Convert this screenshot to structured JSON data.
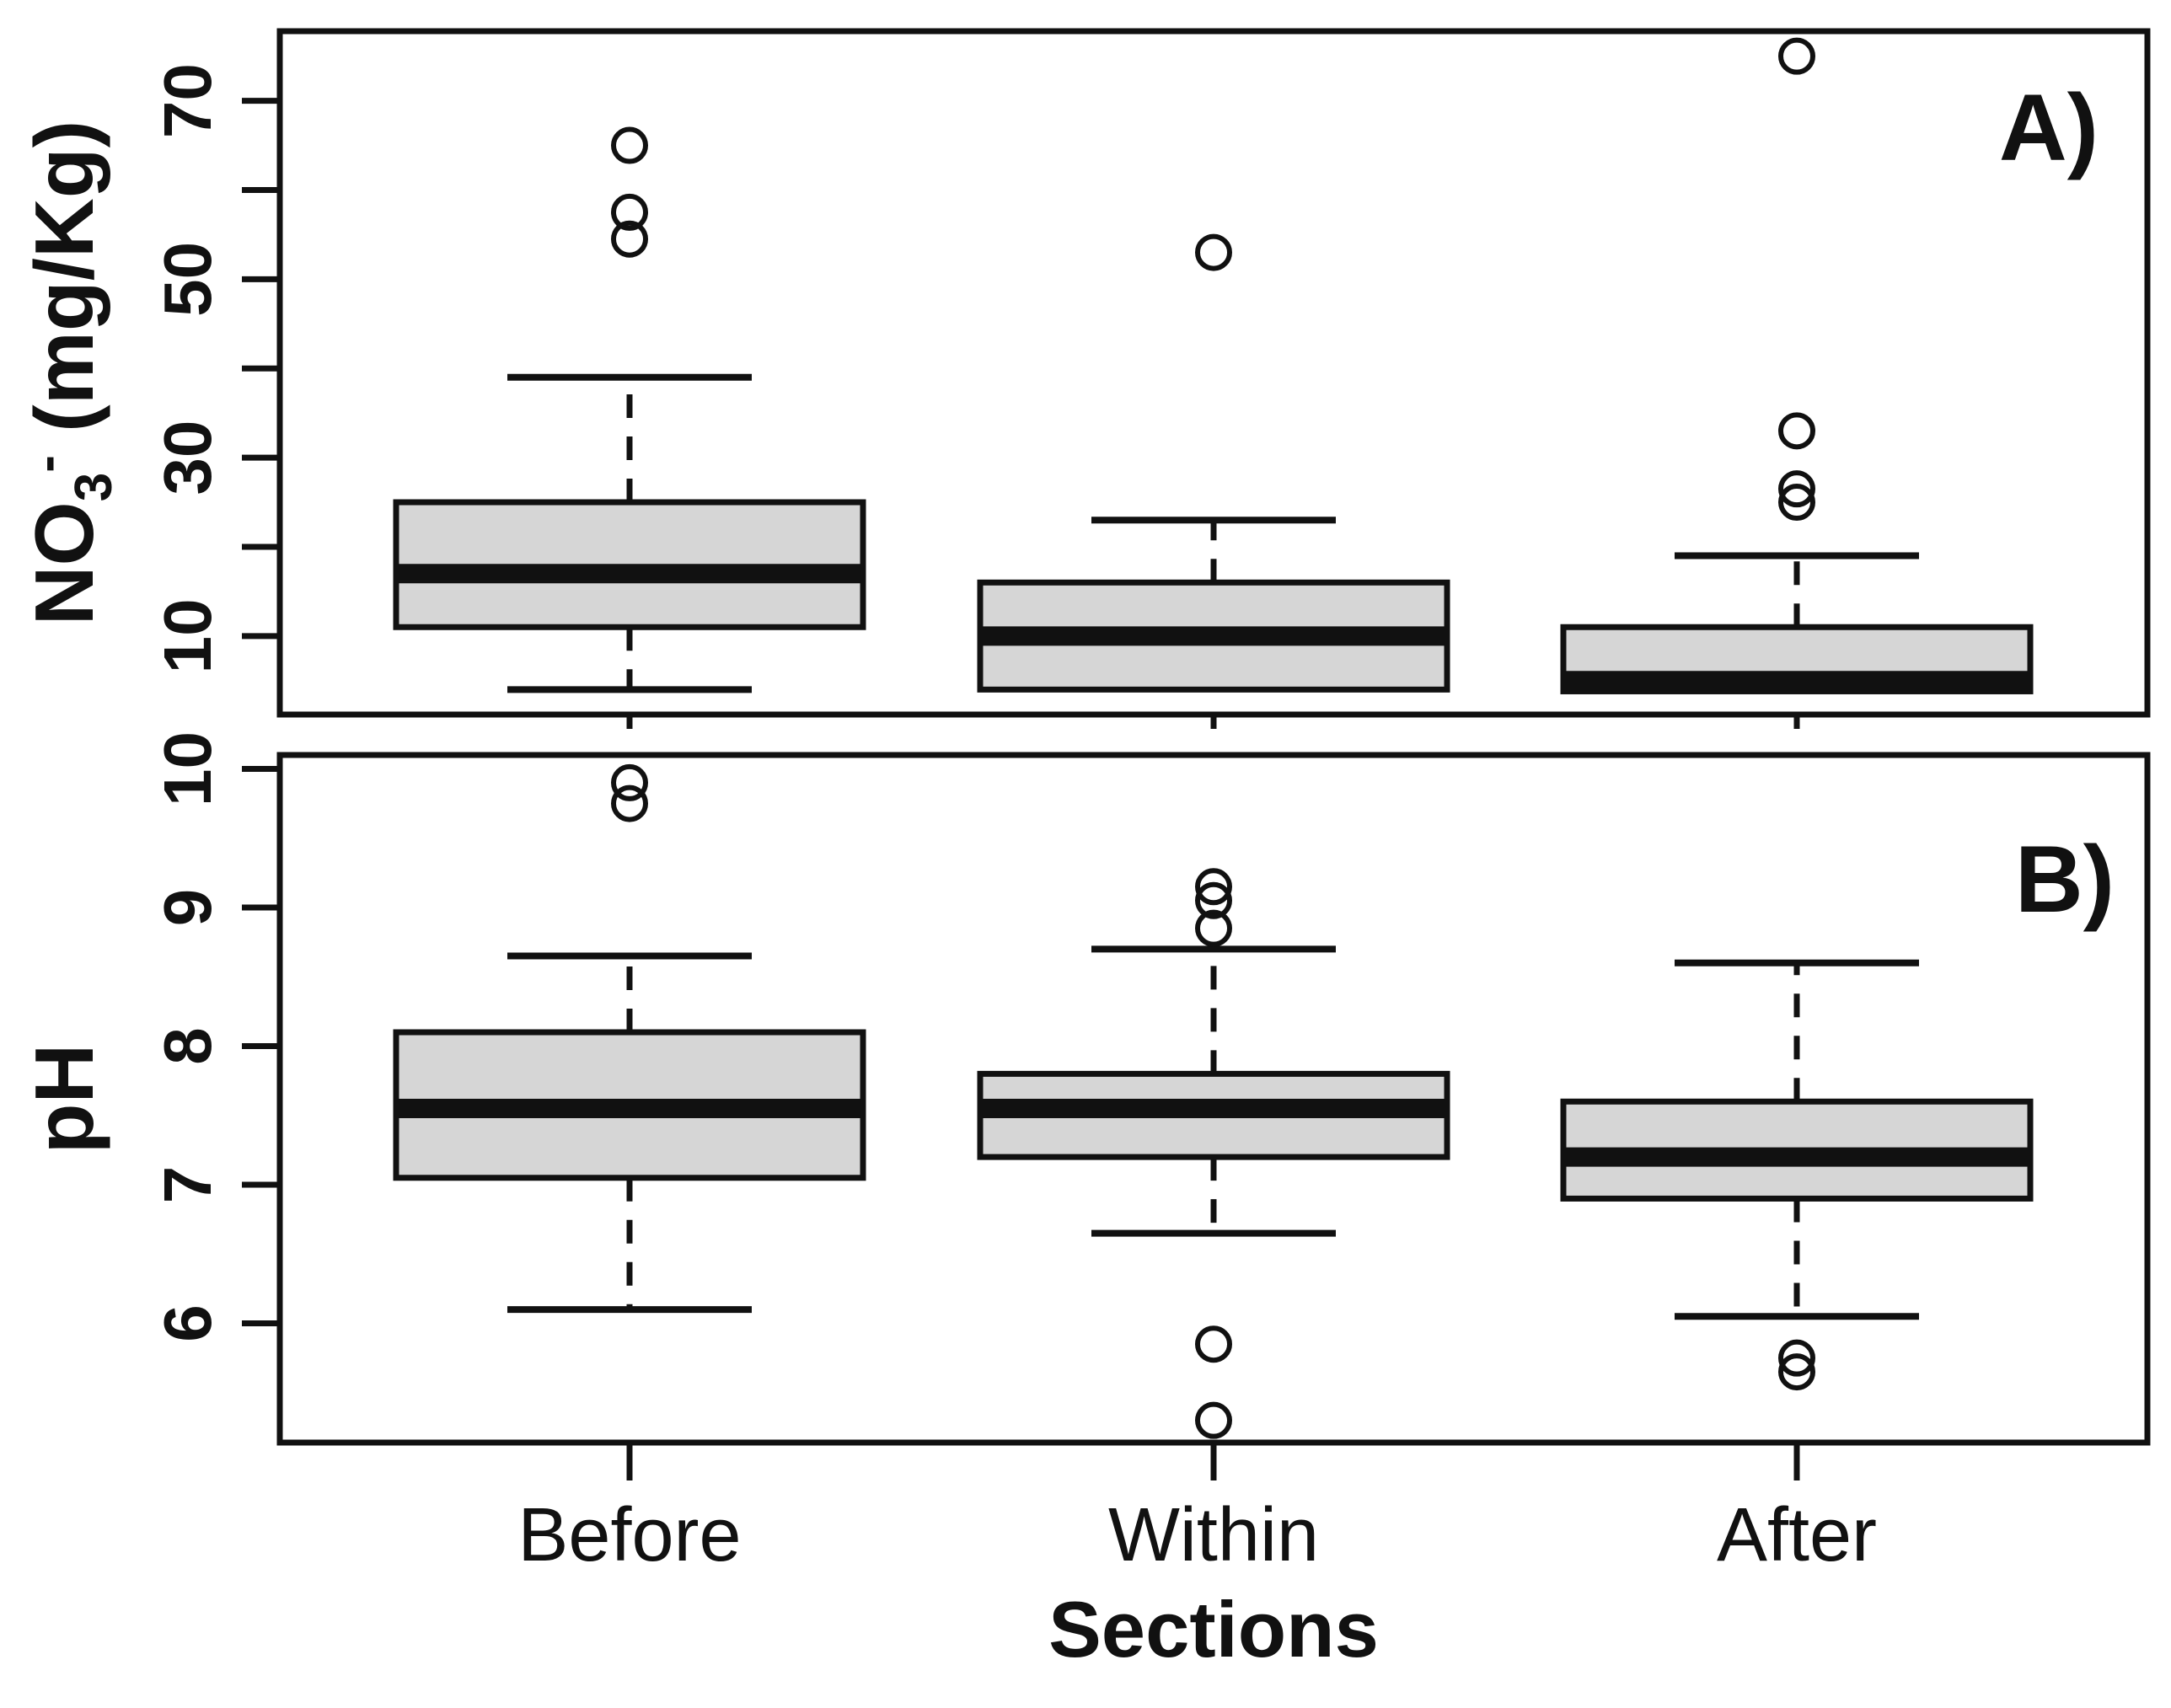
{
  "figure": {
    "background": "#ffffff",
    "line_color": "#111111",
    "box_fill_color": "#d6d6d6"
  },
  "chart_data": {
    "type": "boxplot",
    "layout_hint": "two stacked panels, shared x categories, grid off, no legend",
    "xlabel": "Sections",
    "categories": [
      "Before",
      "Within",
      "After"
    ],
    "panels": [
      {
        "label": "A)",
        "ylabel_text": "NO3- (mg/Kg)",
        "ylabel_rich": {
          "base": "NO",
          "sub": "3",
          "sup": "-",
          "rest": " (mg/Kg)"
        },
        "ylim": [
          1.2,
          77.8
        ],
        "yticks": [
          10,
          20,
          30,
          40,
          50,
          60,
          70
        ],
        "ytick_labeled": [
          10,
          30,
          50,
          70
        ],
        "boxes": [
          {
            "category": "Before",
            "low": 4,
            "q1": 11,
            "median": 17,
            "q3": 25,
            "high": 39,
            "outliers": [
              54.5,
              57.5,
              65
            ]
          },
          {
            "category": "Within",
            "low": null,
            "q1": 4,
            "median": 10,
            "q3": 16,
            "high": 23,
            "outliers": [
              53
            ]
          },
          {
            "category": "After",
            "low": null,
            "q1": 3.8,
            "median": 5,
            "q3": 11,
            "high": 19,
            "outliers": [
              25,
              26.5,
              33,
              75
            ]
          }
        ]
      },
      {
        "label": "B)",
        "ylabel_text": "pH",
        "ylabel_rich": null,
        "ylim": [
          5.14,
          10.1
        ],
        "yticks": [
          6,
          7,
          8,
          9,
          10
        ],
        "ytick_labeled": [
          6,
          7,
          8,
          9,
          10
        ],
        "boxes": [
          {
            "category": "Before",
            "low": 6.1,
            "q1": 7.05,
            "median": 7.55,
            "q3": 8.1,
            "high": 8.65,
            "outliers": [
              9.75,
              9.9
            ]
          },
          {
            "category": "Within",
            "low": 6.65,
            "q1": 7.2,
            "median": 7.55,
            "q3": 7.8,
            "high": 8.7,
            "outliers": [
              5.3,
              5.85,
              8.85,
              9.05,
              9.15
            ]
          },
          {
            "category": "After",
            "low": 6.05,
            "q1": 6.9,
            "median": 7.2,
            "q3": 7.6,
            "high": 8.6,
            "outliers": [
              5.65,
              5.75
            ]
          }
        ]
      }
    ]
  }
}
